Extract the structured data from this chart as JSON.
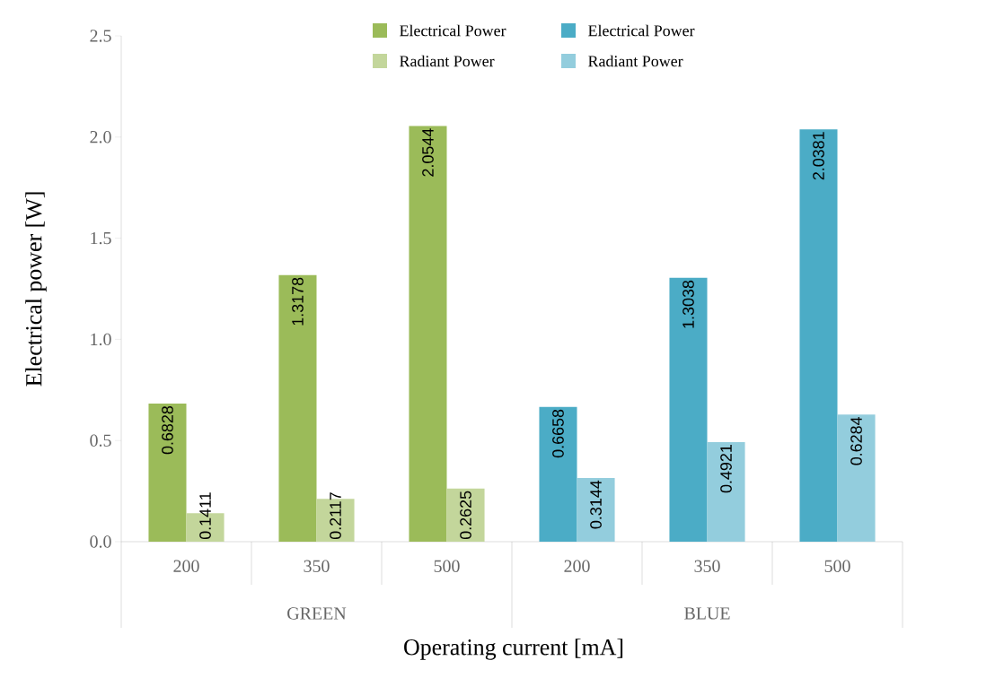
{
  "chart_data": {
    "type": "bar",
    "ylabel": "Electrical power [W]",
    "xlabel": "Operating current [mA]",
    "categories": [
      "200",
      "350",
      "500",
      "200",
      "350",
      "500"
    ],
    "annotations": [
      "GREEN",
      "BLUE"
    ],
    "series": [
      {
        "name": "Electrical Power",
        "color": "#9bbb59",
        "values": [
          0.6828,
          1.3178,
          2.0544,
          null,
          null,
          null
        ]
      },
      {
        "name": "Radiant Power",
        "color": "#c3d69b",
        "values": [
          0.1411,
          0.2117,
          0.2625,
          null,
          null,
          null
        ]
      },
      {
        "name": "Electrical Power",
        "color": "#4bacc6",
        "values": [
          null,
          null,
          null,
          0.6658,
          1.3038,
          2.0381
        ]
      },
      {
        "name": "Radiant Power",
        "color": "#93cddd",
        "values": [
          null,
          null,
          null,
          0.3144,
          0.4921,
          0.6284
        ]
      }
    ],
    "ylim": [
      0,
      2.5
    ],
    "yticks": [
      {
        "value": 0,
        "label": "0.0"
      },
      {
        "value": 0.5,
        "label": "0.5"
      },
      {
        "value": 1,
        "label": "1.0"
      },
      {
        "value": 1.5,
        "label": "1.5"
      },
      {
        "value": 2,
        "label": "2.0"
      },
      {
        "value": 2.5,
        "label": "2.5"
      }
    ],
    "data_labels": true,
    "legend": "top",
    "grid": false
  }
}
